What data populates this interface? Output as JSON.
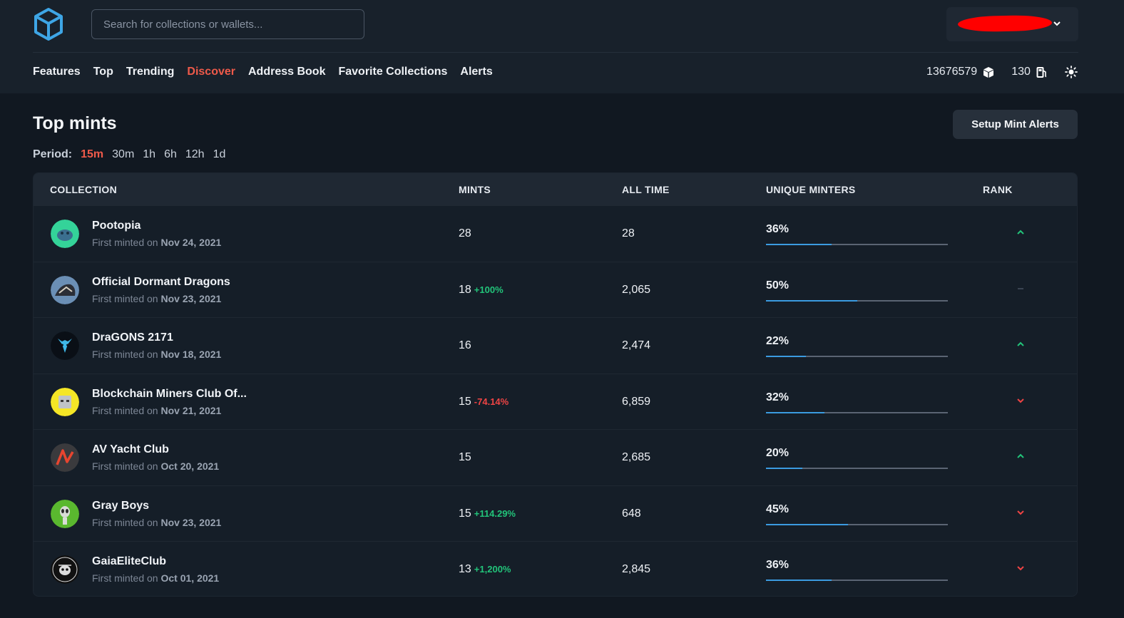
{
  "search": {
    "placeholder": "Search for collections or wallets..."
  },
  "nav": {
    "items": [
      {
        "label": "Features",
        "active": false
      },
      {
        "label": "Top",
        "active": false
      },
      {
        "label": "Trending",
        "active": false
      },
      {
        "label": "Discover",
        "active": true
      },
      {
        "label": "Address Book",
        "active": false
      },
      {
        "label": "Favorite Collections",
        "active": false
      },
      {
        "label": "Alerts",
        "active": false
      }
    ]
  },
  "status": {
    "block": "13676579",
    "gas": "130"
  },
  "page": {
    "title": "Top mints",
    "setup_button": "Setup Mint Alerts"
  },
  "period": {
    "label": "Period:",
    "options": [
      "15m",
      "30m",
      "1h",
      "6h",
      "12h",
      "1d"
    ],
    "selected": "15m"
  },
  "table": {
    "headers": {
      "collection": "COLLECTION",
      "mints": "MINTS",
      "all_time": "ALL TIME",
      "unique_minters": "UNIQUE MINTERS",
      "rank": "RANK"
    },
    "first_minted_prefix": "First minted on",
    "rows": [
      {
        "name": "Pootopia",
        "date": "Nov 24, 2021",
        "mints": "28",
        "delta": "",
        "delta_dir": "",
        "all_time": "28",
        "unique": "36%",
        "unique_frac": 0.36,
        "rank": "up"
      },
      {
        "name": "Official Dormant Dragons",
        "date": "Nov 23, 2021",
        "mints": "18",
        "delta": "+100%",
        "delta_dir": "pos",
        "all_time": "2,065",
        "unique": "50%",
        "unique_frac": 0.5,
        "rank": "same"
      },
      {
        "name": "DraGONS 2171",
        "date": "Nov 18, 2021",
        "mints": "16",
        "delta": "",
        "delta_dir": "",
        "all_time": "2,474",
        "unique": "22%",
        "unique_frac": 0.22,
        "rank": "up"
      },
      {
        "name": "Blockchain Miners Club Of...",
        "date": "Nov 21, 2021",
        "mints": "15",
        "delta": "-74.14%",
        "delta_dir": "neg",
        "all_time": "6,859",
        "unique": "32%",
        "unique_frac": 0.32,
        "rank": "down"
      },
      {
        "name": "AV Yacht Club",
        "date": "Oct 20, 2021",
        "mints": "15",
        "delta": "",
        "delta_dir": "",
        "all_time": "2,685",
        "unique": "20%",
        "unique_frac": 0.2,
        "rank": "up"
      },
      {
        "name": "Gray Boys",
        "date": "Nov 23, 2021",
        "mints": "15",
        "delta": "+114.29%",
        "delta_dir": "pos",
        "all_time": "648",
        "unique": "45%",
        "unique_frac": 0.45,
        "rank": "down"
      },
      {
        "name": "GaiaEliteClub",
        "date": "Oct 01, 2021",
        "mints": "13",
        "delta": "+1,200%",
        "delta_dir": "pos",
        "all_time": "2,845",
        "unique": "36%",
        "unique_frac": 0.36,
        "rank": "down"
      }
    ]
  },
  "colors": {
    "accent": "#ef5a4a",
    "positive": "#22c47a",
    "negative": "#ef4444",
    "bar": "#3b9be0"
  }
}
